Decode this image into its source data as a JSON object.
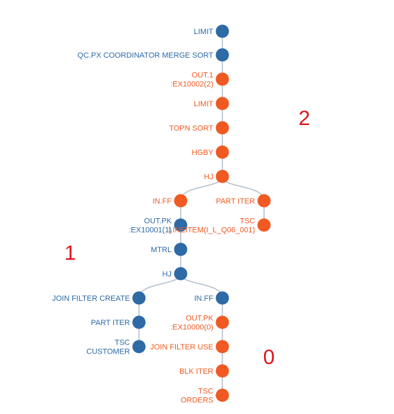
{
  "colors": {
    "blue": "#2e6aa6",
    "orange": "#f05a22",
    "edge": "#b7c3cf",
    "group_label": "#e0141a"
  },
  "nodes": [
    {
      "id": "n1",
      "lines": [
        "LIMIT"
      ],
      "color": "blue"
    },
    {
      "id": "n2",
      "lines": [
        "QC.PX COORDINATOR MERGE SORT"
      ],
      "color": "blue"
    },
    {
      "id": "n3",
      "lines": [
        "OUT.1",
        ":EX10002(2)"
      ],
      "color": "orange"
    },
    {
      "id": "n4",
      "lines": [
        "LIMIT"
      ],
      "color": "orange"
    },
    {
      "id": "n5",
      "lines": [
        "TOPN SORT"
      ],
      "color": "orange"
    },
    {
      "id": "n6",
      "lines": [
        "HGBY"
      ],
      "color": "orange"
    },
    {
      "id": "n7",
      "lines": [
        "HJ"
      ],
      "color": "orange"
    },
    {
      "id": "n8",
      "lines": [
        "IN.FF"
      ],
      "color": "orange"
    },
    {
      "id": "n9",
      "lines": [
        "PART ITER"
      ],
      "color": "orange"
    },
    {
      "id": "n10",
      "lines": [
        "OUT.PK",
        ":EX10001(1)"
      ],
      "color": "blue"
    },
    {
      "id": "n11",
      "lines": [
        "TSC",
        "LINEITEM(I_L_Q06_001)"
      ],
      "color": "orange"
    },
    {
      "id": "n12",
      "lines": [
        "MTRL"
      ],
      "color": "blue"
    },
    {
      "id": "n13",
      "lines": [
        "HJ"
      ],
      "color": "blue"
    },
    {
      "id": "n14",
      "lines": [
        "JOIN FILTER CREATE"
      ],
      "color": "blue"
    },
    {
      "id": "n15",
      "lines": [
        "IN.FF"
      ],
      "color": "blue"
    },
    {
      "id": "n16",
      "lines": [
        "PART ITER"
      ],
      "color": "blue"
    },
    {
      "id": "n17",
      "lines": [
        "OUT.PK",
        ":EX10000(0)"
      ],
      "color": "orange"
    },
    {
      "id": "n18",
      "lines": [
        "TSC",
        "CUSTOMER"
      ],
      "color": "blue"
    },
    {
      "id": "n19",
      "lines": [
        "JOIN FILTER USE"
      ],
      "color": "orange"
    },
    {
      "id": "n20",
      "lines": [
        "BLK ITER"
      ],
      "color": "orange"
    },
    {
      "id": "n21",
      "lines": [
        "TSC",
        "ORDERS"
      ],
      "color": "orange"
    }
  ],
  "edges": [
    [
      "n1",
      "n2"
    ],
    [
      "n2",
      "n3"
    ],
    [
      "n3",
      "n4"
    ],
    [
      "n4",
      "n5"
    ],
    [
      "n5",
      "n6"
    ],
    [
      "n6",
      "n7"
    ],
    [
      "n7",
      "n8"
    ],
    [
      "n7",
      "n9"
    ],
    [
      "n8",
      "n10"
    ],
    [
      "n9",
      "n11"
    ],
    [
      "n10",
      "n12"
    ],
    [
      "n12",
      "n13"
    ],
    [
      "n13",
      "n14"
    ],
    [
      "n13",
      "n15"
    ],
    [
      "n14",
      "n16"
    ],
    [
      "n16",
      "n18"
    ],
    [
      "n15",
      "n17"
    ],
    [
      "n17",
      "n19"
    ],
    [
      "n19",
      "n20"
    ],
    [
      "n20",
      "n21"
    ]
  ],
  "group_labels": [
    {
      "id": "g2",
      "text": "2"
    },
    {
      "id": "g1",
      "text": "1"
    },
    {
      "id": "g0",
      "text": "0"
    }
  ]
}
